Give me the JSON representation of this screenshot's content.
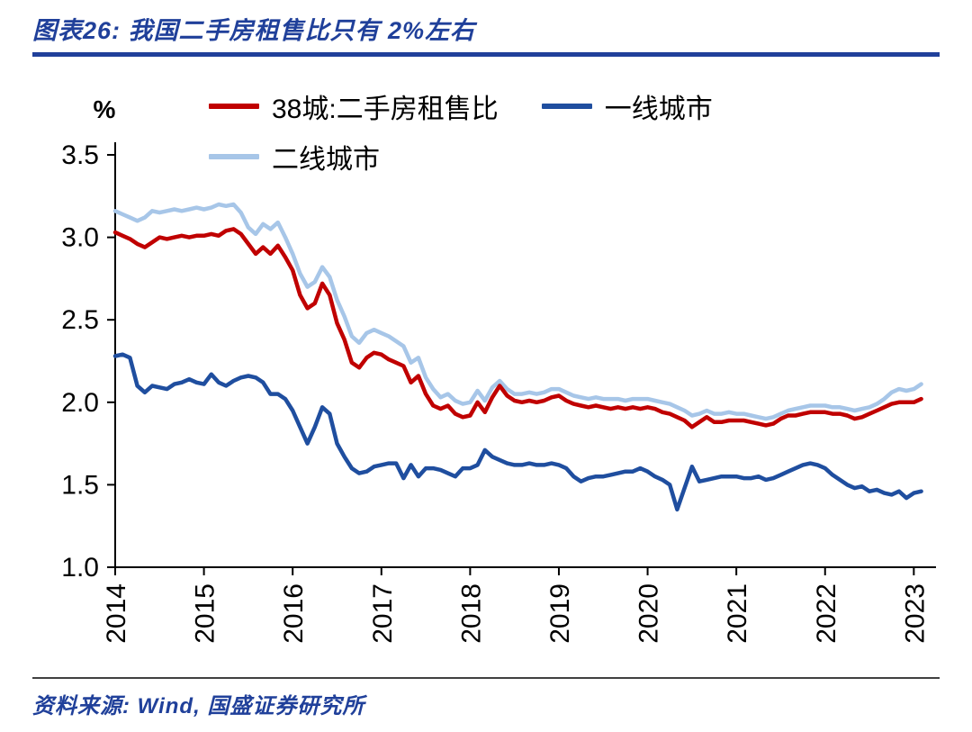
{
  "header": {
    "title": "图表26:  我国二手房租售比只有 2%左右"
  },
  "footer": {
    "source": "资料来源: Wind, 国盛证券研究所"
  },
  "colors": {
    "heading_blue": "#20409A",
    "footer_rule": "#404040",
    "axis_black": "#000000"
  },
  "chart_data": {
    "type": "line",
    "title": "我国二手房租售比只有 2%左右",
    "unit_label": "%",
    "xlabel": "",
    "ylabel": "%",
    "ylim": [
      1.0,
      3.5
    ],
    "yticks": [
      3.5,
      3.0,
      2.5,
      2.0,
      1.5,
      1.0
    ],
    "xticks": [
      2014,
      2015,
      2016,
      2017,
      2018,
      2019,
      2020,
      2021,
      2022,
      2023
    ],
    "x_start": 2014.0,
    "x_step": 0.0833333,
    "grid": false,
    "legend_position": "top",
    "series": [
      {
        "name": "38城:二手房租售比",
        "color": "#C00000",
        "values": [
          3.03,
          3.01,
          2.99,
          2.96,
          2.94,
          2.97,
          3.0,
          2.99,
          3.0,
          3.01,
          3.0,
          3.01,
          3.01,
          3.02,
          3.01,
          3.04,
          3.05,
          3.02,
          2.96,
          2.9,
          2.94,
          2.9,
          2.95,
          2.88,
          2.8,
          2.65,
          2.57,
          2.6,
          2.72,
          2.65,
          2.48,
          2.38,
          2.24,
          2.21,
          2.27,
          2.3,
          2.29,
          2.26,
          2.24,
          2.22,
          2.12,
          2.16,
          2.05,
          1.98,
          1.96,
          1.98,
          1.93,
          1.91,
          1.92,
          2.0,
          1.94,
          2.03,
          2.1,
          2.04,
          2.01,
          2.0,
          2.01,
          2.0,
          2.01,
          2.03,
          2.04,
          2.01,
          1.99,
          1.98,
          1.97,
          1.98,
          1.97,
          1.96,
          1.97,
          1.96,
          1.97,
          1.96,
          1.97,
          1.96,
          1.94,
          1.93,
          1.91,
          1.89,
          1.85,
          1.88,
          1.91,
          1.88,
          1.88,
          1.89,
          1.89,
          1.89,
          1.88,
          1.87,
          1.86,
          1.87,
          1.9,
          1.92,
          1.92,
          1.93,
          1.94,
          1.94,
          1.94,
          1.93,
          1.93,
          1.92,
          1.9,
          1.91,
          1.93,
          1.95,
          1.97,
          1.99,
          2.0,
          2.0,
          2.0,
          2.02
        ]
      },
      {
        "name": "一线城市",
        "color": "#1F4E9F",
        "values": [
          2.28,
          2.29,
          2.27,
          2.1,
          2.06,
          2.1,
          2.09,
          2.08,
          2.11,
          2.12,
          2.14,
          2.12,
          2.11,
          2.17,
          2.12,
          2.1,
          2.13,
          2.15,
          2.16,
          2.15,
          2.12,
          2.05,
          2.05,
          2.02,
          1.95,
          1.85,
          1.75,
          1.85,
          1.97,
          1.93,
          1.75,
          1.67,
          1.6,
          1.57,
          1.58,
          1.61,
          1.62,
          1.63,
          1.63,
          1.54,
          1.62,
          1.55,
          1.6,
          1.6,
          1.59,
          1.57,
          1.55,
          1.6,
          1.6,
          1.62,
          1.71,
          1.67,
          1.65,
          1.63,
          1.62,
          1.62,
          1.63,
          1.62,
          1.62,
          1.63,
          1.62,
          1.6,
          1.55,
          1.52,
          1.54,
          1.55,
          1.55,
          1.56,
          1.57,
          1.58,
          1.58,
          1.6,
          1.58,
          1.55,
          1.53,
          1.5,
          1.35,
          1.48,
          1.61,
          1.52,
          1.53,
          1.54,
          1.55,
          1.55,
          1.55,
          1.54,
          1.54,
          1.55,
          1.53,
          1.54,
          1.56,
          1.58,
          1.6,
          1.62,
          1.63,
          1.62,
          1.6,
          1.56,
          1.53,
          1.5,
          1.48,
          1.49,
          1.46,
          1.47,
          1.45,
          1.44,
          1.46,
          1.42,
          1.45,
          1.46
        ]
      },
      {
        "name": "二线城市",
        "color": "#A7C6E8",
        "values": [
          3.16,
          3.14,
          3.12,
          3.1,
          3.12,
          3.16,
          3.15,
          3.16,
          3.17,
          3.16,
          3.17,
          3.18,
          3.17,
          3.18,
          3.2,
          3.19,
          3.2,
          3.15,
          3.06,
          3.02,
          3.08,
          3.05,
          3.09,
          3.0,
          2.9,
          2.78,
          2.7,
          2.73,
          2.82,
          2.76,
          2.62,
          2.52,
          2.4,
          2.36,
          2.42,
          2.44,
          2.42,
          2.4,
          2.37,
          2.34,
          2.24,
          2.27,
          2.15,
          2.08,
          2.03,
          2.05,
          2.01,
          1.99,
          2.0,
          2.07,
          2.01,
          2.09,
          2.13,
          2.08,
          2.05,
          2.05,
          2.06,
          2.05,
          2.06,
          2.08,
          2.08,
          2.06,
          2.04,
          2.03,
          2.02,
          2.03,
          2.02,
          2.02,
          2.02,
          2.01,
          2.02,
          2.02,
          2.02,
          2.01,
          2.0,
          1.99,
          1.97,
          1.95,
          1.92,
          1.93,
          1.95,
          1.93,
          1.93,
          1.94,
          1.93,
          1.93,
          1.92,
          1.91,
          1.9,
          1.91,
          1.93,
          1.95,
          1.96,
          1.97,
          1.98,
          1.98,
          1.98,
          1.97,
          1.97,
          1.96,
          1.95,
          1.96,
          1.97,
          1.99,
          2.02,
          2.06,
          2.08,
          2.07,
          2.08,
          2.11
        ]
      }
    ]
  }
}
